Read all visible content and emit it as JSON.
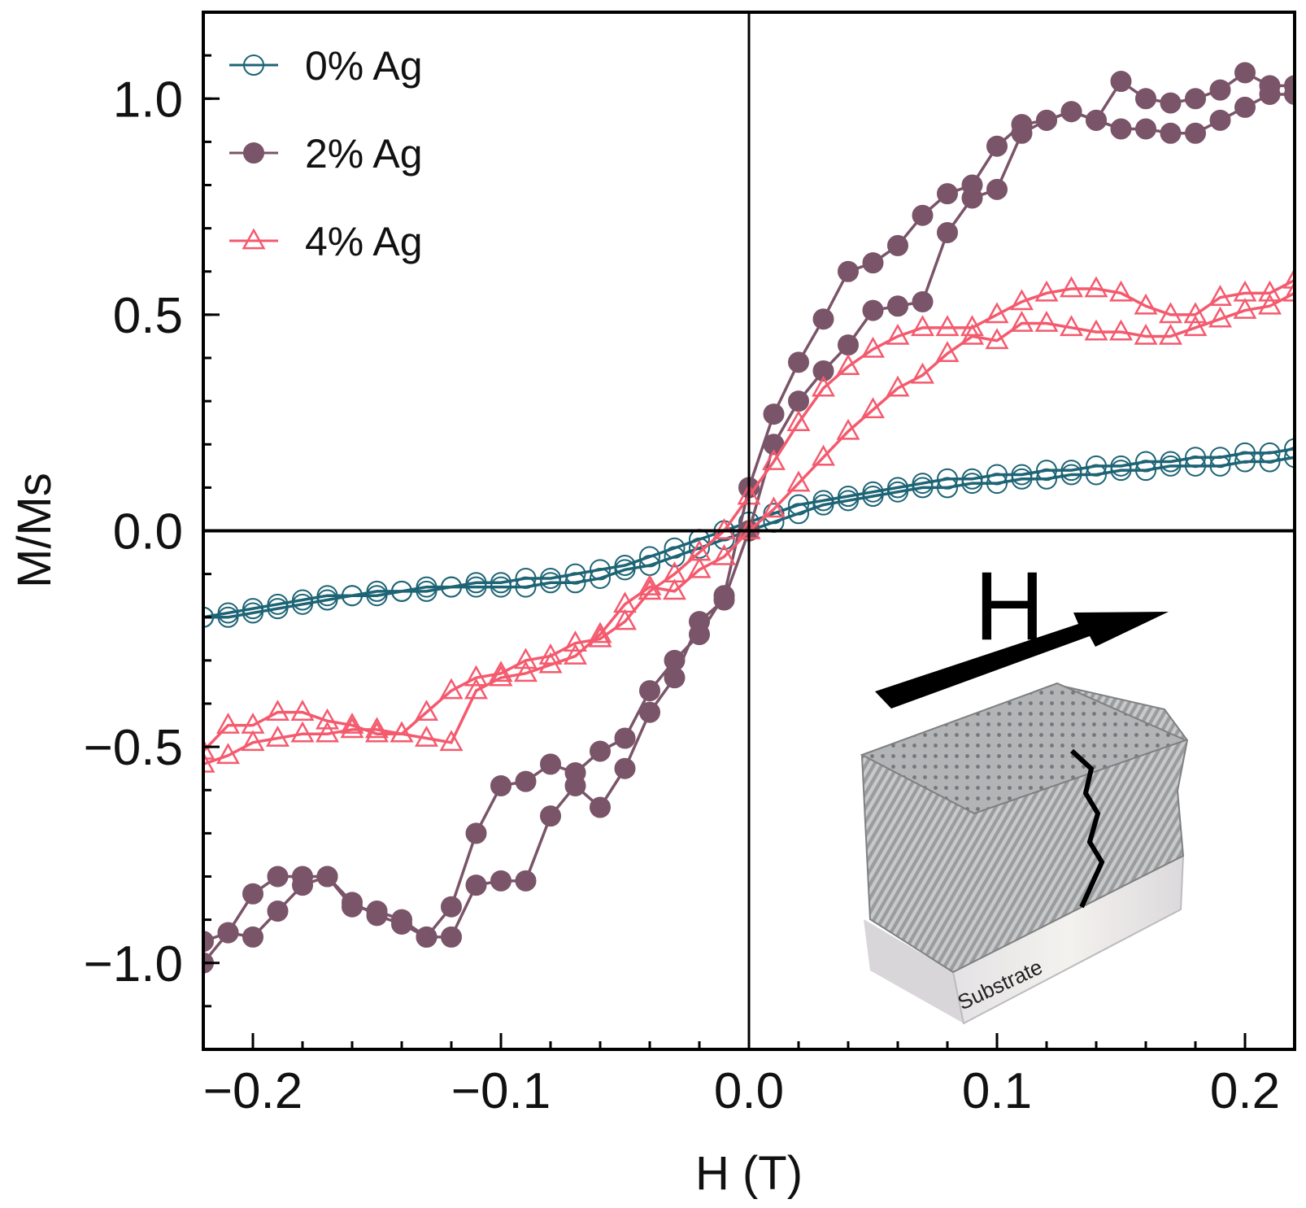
{
  "chart_data": {
    "type": "scatter",
    "xlabel": "H (T)",
    "ylabel": "M/Ms",
    "xlim": [
      -0.22,
      0.22
    ],
    "ylim": [
      -1.2,
      1.2
    ],
    "xticks": [
      {
        "value": -0.2,
        "label": "−0.2"
      },
      {
        "value": -0.1,
        "label": "−0.1"
      },
      {
        "value": 0.0,
        "label": "0.0"
      },
      {
        "value": 0.1,
        "label": "0.1"
      },
      {
        "value": 0.2,
        "label": "0.2"
      }
    ],
    "yticks": [
      {
        "value": -1.0,
        "label": "−1.0"
      },
      {
        "value": -0.5,
        "label": "−0.5"
      },
      {
        "value": 0.0,
        "label": "0.0"
      },
      {
        "value": 0.5,
        "label": "0.5"
      },
      {
        "value": 1.0,
        "label": "1.0"
      }
    ],
    "legend_position": "top-left",
    "series": [
      {
        "name": "0% Ag",
        "color": "#1d6475",
        "marker": "open-circle",
        "branches": [
          {
            "x": [
              -0.22,
              -0.21,
              -0.2,
              -0.19,
              -0.18,
              -0.17,
              -0.16,
              -0.15,
              -0.14,
              -0.13,
              -0.12,
              -0.11,
              -0.1,
              -0.09,
              -0.08,
              -0.07,
              -0.06,
              -0.05,
              -0.04,
              -0.03,
              -0.02,
              -0.01,
              0.0,
              0.01,
              0.02,
              0.03,
              0.04,
              0.05,
              0.06,
              0.07,
              0.08,
              0.09,
              0.1,
              0.11,
              0.12,
              0.13,
              0.14,
              0.15,
              0.16,
              0.17,
              0.18,
              0.19,
              0.2,
              0.21,
              0.22
            ],
            "y": [
              -0.2,
              -0.2,
              -0.19,
              -0.18,
              -0.17,
              -0.16,
              -0.15,
              -0.15,
              -0.14,
              -0.14,
              -0.13,
              -0.13,
              -0.13,
              -0.13,
              -0.12,
              -0.12,
              -0.11,
              -0.09,
              -0.08,
              -0.06,
              -0.04,
              -0.02,
              0.0,
              0.02,
              0.04,
              0.06,
              0.07,
              0.08,
              0.09,
              0.1,
              0.1,
              0.11,
              0.11,
              0.12,
              0.12,
              0.13,
              0.13,
              0.14,
              0.14,
              0.15,
              0.15,
              0.15,
              0.16,
              0.16,
              0.17
            ]
          },
          {
            "x": [
              0.22,
              0.21,
              0.2,
              0.19,
              0.18,
              0.17,
              0.16,
              0.15,
              0.14,
              0.13,
              0.12,
              0.11,
              0.1,
              0.09,
              0.08,
              0.07,
              0.06,
              0.05,
              0.04,
              0.03,
              0.02,
              0.01,
              0.0,
              -0.01,
              -0.02,
              -0.03,
              -0.04,
              -0.05,
              -0.06,
              -0.07,
              -0.08,
              -0.09,
              -0.1,
              -0.11,
              -0.12,
              -0.13,
              -0.14,
              -0.15,
              -0.16,
              -0.17,
              -0.18,
              -0.19,
              -0.2,
              -0.21,
              -0.22
            ],
            "y": [
              0.19,
              0.18,
              0.18,
              0.17,
              0.17,
              0.16,
              0.16,
              0.15,
              0.15,
              0.14,
              0.14,
              0.13,
              0.13,
              0.12,
              0.12,
              0.11,
              0.1,
              0.09,
              0.08,
              0.07,
              0.06,
              0.04,
              0.02,
              0.0,
              -0.02,
              -0.04,
              -0.06,
              -0.08,
              -0.09,
              -0.1,
              -0.11,
              -0.11,
              -0.12,
              -0.12,
              -0.13,
              -0.13,
              -0.14,
              -0.14,
              -0.15,
              -0.15,
              -0.16,
              -0.17,
              -0.18,
              -0.19,
              -0.2
            ]
          }
        ]
      },
      {
        "name": "2% Ag",
        "color": "#7a5468",
        "marker": "filled-circle",
        "branches": [
          {
            "x": [
              -0.22,
              -0.21,
              -0.2,
              -0.19,
              -0.18,
              -0.17,
              -0.16,
              -0.15,
              -0.14,
              -0.13,
              -0.12,
              -0.11,
              -0.1,
              -0.09,
              -0.08,
              -0.07,
              -0.06,
              -0.05,
              -0.04,
              -0.03,
              -0.02,
              -0.01,
              0.0,
              0.01,
              0.02,
              0.03,
              0.04,
              0.05,
              0.06,
              0.07,
              0.08,
              0.09,
              0.1,
              0.11,
              0.12,
              0.13,
              0.14,
              0.15,
              0.16,
              0.17,
              0.18,
              0.19,
              0.2,
              0.21,
              0.22
            ],
            "y": [
              -1.0,
              -0.93,
              -0.84,
              -0.8,
              -0.8,
              -0.8,
              -0.87,
              -0.88,
              -0.9,
              -0.94,
              -0.87,
              -0.7,
              -0.59,
              -0.58,
              -0.54,
              -0.56,
              -0.51,
              -0.48,
              -0.37,
              -0.3,
              -0.24,
              -0.15,
              0.1,
              0.27,
              0.39,
              0.49,
              0.6,
              0.62,
              0.66,
              0.73,
              0.78,
              0.8,
              0.89,
              0.94,
              0.95,
              0.97,
              0.95,
              1.04,
              1.0,
              0.99,
              1.0,
              1.02,
              1.06,
              1.03,
              1.03
            ]
          },
          {
            "x": [
              0.22,
              0.21,
              0.2,
              0.19,
              0.18,
              0.17,
              0.16,
              0.15,
              0.14,
              0.13,
              0.12,
              0.11,
              0.1,
              0.09,
              0.08,
              0.07,
              0.06,
              0.05,
              0.04,
              0.03,
              0.02,
              0.01,
              0.0,
              -0.01,
              -0.02,
              -0.03,
              -0.04,
              -0.05,
              -0.06,
              -0.07,
              -0.08,
              -0.09,
              -0.1,
              -0.11,
              -0.12,
              -0.13,
              -0.14,
              -0.15,
              -0.16,
              -0.17,
              -0.18,
              -0.19,
              -0.2,
              -0.21,
              -0.22
            ],
            "y": [
              1.01,
              1.01,
              0.98,
              0.95,
              0.92,
              0.92,
              0.93,
              0.93,
              0.95,
              0.97,
              0.95,
              0.92,
              0.79,
              0.77,
              0.69,
              0.53,
              0.52,
              0.51,
              0.43,
              0.37,
              0.3,
              0.2,
              0.0,
              -0.16,
              -0.21,
              -0.34,
              -0.42,
              -0.55,
              -0.64,
              -0.59,
              -0.66,
              -0.81,
              -0.81,
              -0.82,
              -0.94,
              -0.94,
              -0.91,
              -0.89,
              -0.86,
              -0.8,
              -0.82,
              -0.88,
              -0.94,
              -0.93,
              -0.95
            ]
          }
        ]
      },
      {
        "name": "4% Ag",
        "color": "#f45a6e",
        "marker": "open-triangle",
        "branches": [
          {
            "x": [
              -0.22,
              -0.21,
              -0.2,
              -0.19,
              -0.18,
              -0.17,
              -0.16,
              -0.15,
              -0.14,
              -0.13,
              -0.12,
              -0.11,
              -0.1,
              -0.09,
              -0.08,
              -0.07,
              -0.06,
              -0.05,
              -0.04,
              -0.03,
              -0.02,
              -0.01,
              0.0,
              0.01,
              0.02,
              0.03,
              0.04,
              0.05,
              0.06,
              0.07,
              0.08,
              0.09,
              0.1,
              0.11,
              0.12,
              0.13,
              0.14,
              0.15,
              0.16,
              0.17,
              0.18,
              0.19,
              0.2,
              0.21,
              0.22
            ],
            "y": [
              -0.51,
              -0.45,
              -0.45,
              -0.42,
              -0.42,
              -0.44,
              -0.45,
              -0.47,
              -0.47,
              -0.42,
              -0.37,
              -0.34,
              -0.33,
              -0.3,
              -0.29,
              -0.26,
              -0.25,
              -0.21,
              -0.14,
              -0.1,
              -0.05,
              0.0,
              0.08,
              0.16,
              0.25,
              0.33,
              0.38,
              0.42,
              0.45,
              0.47,
              0.47,
              0.47,
              0.5,
              0.53,
              0.55,
              0.56,
              0.56,
              0.55,
              0.52,
              0.5,
              0.5,
              0.54,
              0.55,
              0.55,
              0.58
            ]
          },
          {
            "x": [
              0.22,
              0.21,
              0.2,
              0.19,
              0.18,
              0.17,
              0.16,
              0.15,
              0.14,
              0.13,
              0.12,
              0.11,
              0.1,
              0.09,
              0.08,
              0.07,
              0.06,
              0.05,
              0.04,
              0.03,
              0.02,
              0.01,
              0.0,
              -0.01,
              -0.02,
              -0.03,
              -0.04,
              -0.05,
              -0.06,
              -0.07,
              -0.08,
              -0.09,
              -0.1,
              -0.11,
              -0.12,
              -0.13,
              -0.14,
              -0.15,
              -0.16,
              -0.17,
              -0.18,
              -0.19,
              -0.2,
              -0.21,
              -0.22
            ],
            "y": [
              0.55,
              0.52,
              0.51,
              0.49,
              0.47,
              0.45,
              0.45,
              0.46,
              0.46,
              0.47,
              0.48,
              0.48,
              0.44,
              0.45,
              0.41,
              0.36,
              0.33,
              0.28,
              0.23,
              0.17,
              0.11,
              0.05,
              0.0,
              -0.06,
              -0.09,
              -0.14,
              -0.13,
              -0.17,
              -0.24,
              -0.29,
              -0.31,
              -0.33,
              -0.34,
              -0.37,
              -0.49,
              -0.48,
              -0.47,
              -0.46,
              -0.46,
              -0.47,
              -0.47,
              -0.48,
              -0.49,
              -0.52,
              -0.54
            ]
          }
        ]
      }
    ]
  },
  "inset": {
    "field_label": "H",
    "substrate_label": "Substrate"
  }
}
